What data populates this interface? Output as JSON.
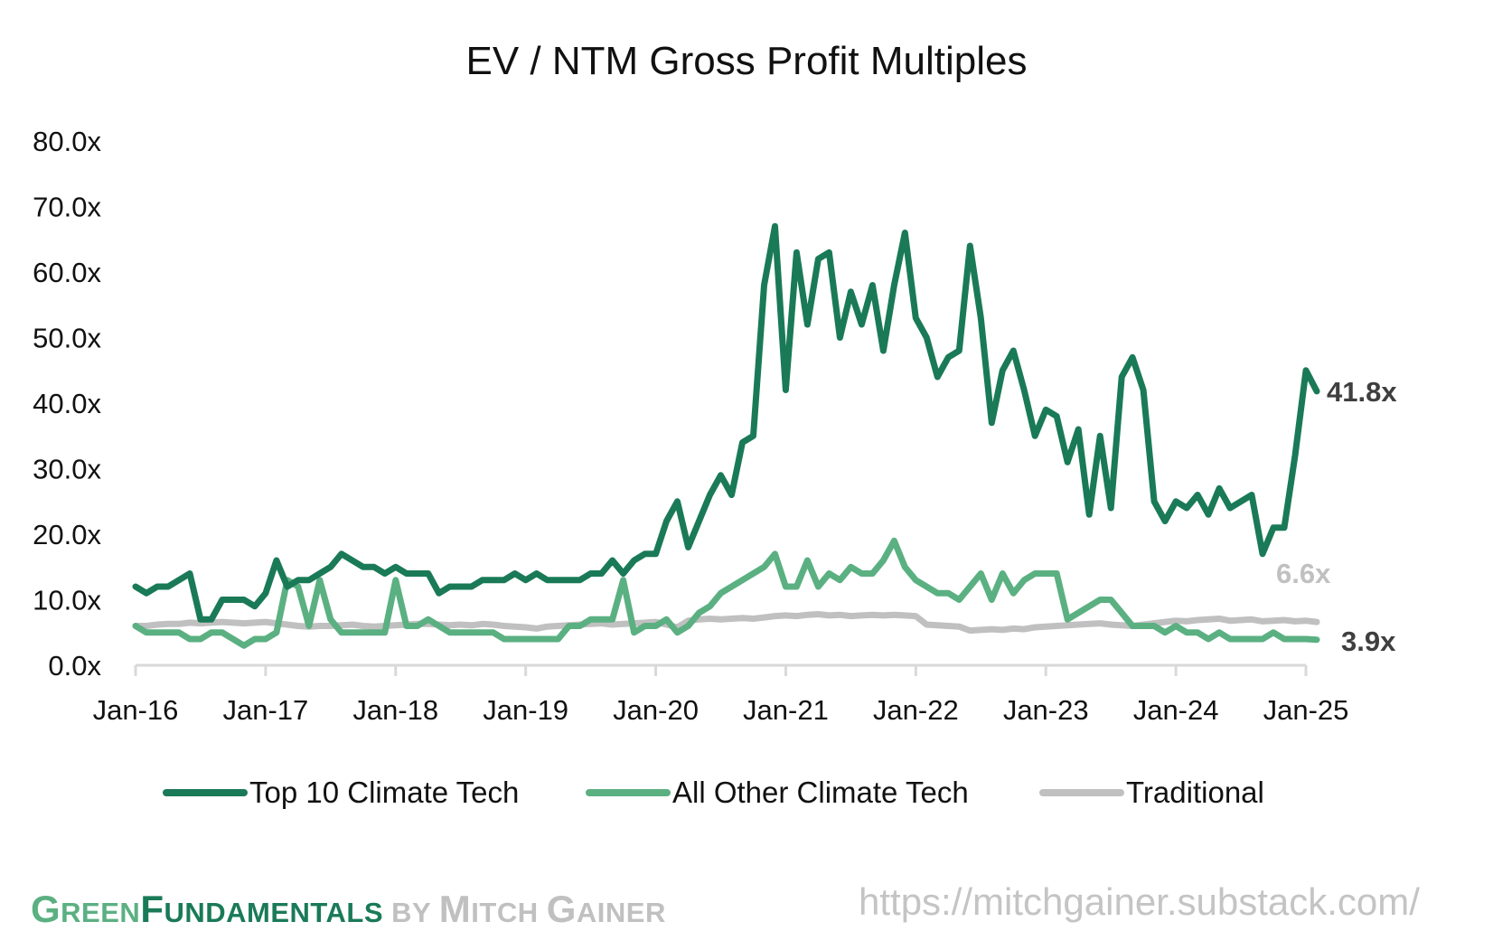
{
  "chart_data": {
    "type": "line",
    "title": "EV / NTM Gross Profit Multiples",
    "xlabel": "",
    "ylabel": "",
    "ylim": [
      0,
      80
    ],
    "y_ticks": [
      "0.0x",
      "10.0x",
      "20.0x",
      "30.0x",
      "40.0x",
      "50.0x",
      "60.0x",
      "70.0x",
      "80.0x"
    ],
    "x_ticks": [
      "Jan-16",
      "Jan-17",
      "Jan-18",
      "Jan-19",
      "Jan-20",
      "Jan-21",
      "Jan-22",
      "Jan-23",
      "Jan-24",
      "Jan-25"
    ],
    "x_start": "Jan-16",
    "x_frequency": "monthly",
    "grid": false,
    "legend_position": "bottom",
    "series": [
      {
        "name": "Top 10 Climate Tech",
        "color": "#1a7a58",
        "end_label": "41.8x",
        "values": [
          12,
          11,
          12,
          12,
          13,
          14,
          7,
          7,
          10,
          10,
          10,
          9,
          11,
          16,
          12,
          13,
          13,
          14,
          15,
          17,
          16,
          15,
          15,
          14,
          15,
          14,
          14,
          14,
          11,
          12,
          12,
          12,
          13,
          13,
          13,
          14,
          13,
          14,
          13,
          13,
          13,
          13,
          14,
          14,
          16,
          14,
          16,
          17,
          17,
          22,
          25,
          18,
          22,
          26,
          29,
          26,
          34,
          35,
          58,
          67,
          42,
          63,
          52,
          62,
          63,
          50,
          57,
          52,
          58,
          48,
          58,
          66,
          53,
          50,
          44,
          47,
          48,
          64,
          53,
          37,
          45,
          48,
          42,
          35,
          39,
          38,
          31,
          36,
          23,
          35,
          24,
          44,
          47,
          42,
          25,
          22,
          25,
          24,
          26,
          23,
          27,
          24,
          25,
          26,
          17,
          21,
          21,
          32,
          45,
          41.8
        ]
      },
      {
        "name": "All Other Climate Tech",
        "color": "#5bb082",
        "end_label": "3.9x",
        "values": [
          6,
          5,
          5,
          5,
          5,
          4,
          4,
          5,
          5,
          4,
          3,
          4,
          4,
          5,
          13,
          12,
          6,
          13,
          7,
          5,
          5,
          5,
          5,
          5,
          13,
          6,
          6,
          7,
          6,
          5,
          5,
          5,
          5,
          5,
          4,
          4,
          4,
          4,
          4,
          4,
          6,
          6,
          7,
          7,
          7,
          13,
          5,
          6,
          6,
          7,
          5,
          6,
          8,
          9,
          11,
          12,
          13,
          14,
          15,
          17,
          12,
          12,
          16,
          12,
          14,
          13,
          15,
          14,
          14,
          16,
          19,
          15,
          13,
          12,
          11,
          11,
          10,
          12,
          14,
          10,
          14,
          11,
          13,
          14,
          14,
          14,
          7,
          8,
          9,
          10,
          10,
          8,
          6,
          6,
          6,
          5,
          6,
          5,
          5,
          4,
          5,
          4,
          4,
          4,
          4,
          5,
          4,
          4,
          4,
          3.9
        ]
      },
      {
        "name": "Traditional",
        "color": "#c0c0c0",
        "end_label": "6.6x",
        "values": [
          6,
          6,
          6.2,
          6.3,
          6.3,
          6.5,
          6.4,
          6.5,
          6.6,
          6.5,
          6.4,
          6.5,
          6.6,
          6.4,
          6.2,
          6,
          5.9,
          6,
          6,
          6.1,
          6.2,
          6,
          5.9,
          6,
          6.1,
          6.2,
          6.3,
          6.3,
          6.2,
          6.1,
          6.2,
          6.1,
          6.3,
          6.2,
          6,
          5.9,
          5.8,
          5.6,
          5.9,
          6,
          6.1,
          6.2,
          6.3,
          6.4,
          6.2,
          6.3,
          6.4,
          6.5,
          6.6,
          6.2,
          5.8,
          6.8,
          7,
          7.1,
          7,
          7.1,
          7.2,
          7.1,
          7.3,
          7.5,
          7.6,
          7.5,
          7.7,
          7.8,
          7.6,
          7.7,
          7.5,
          7.6,
          7.7,
          7.6,
          7.7,
          7.6,
          7.5,
          6.2,
          6.1,
          6,
          5.9,
          5.3,
          5.4,
          5.5,
          5.4,
          5.6,
          5.5,
          5.8,
          5.9,
          6,
          6.1,
          6.2,
          6.3,
          6.4,
          6.2,
          6.1,
          6,
          6.2,
          6.4,
          6.6,
          6.8,
          6.7,
          6.9,
          7,
          7.1,
          6.8,
          6.9,
          7,
          6.7,
          6.8,
          6.9,
          6.7,
          6.8,
          6.6
        ]
      }
    ]
  },
  "footer": {
    "brand_green_1": "G",
    "brand_green_2": "REEN",
    "brand_dark_1": "F",
    "brand_dark_2": "UNDAMENTALS",
    "brand_by": " BY ",
    "brand_gray_1": "M",
    "brand_gray_2": "ITCH ",
    "brand_gray_3": "G",
    "brand_gray_4": "AINER",
    "url": "https://mitchgainer.substack.com/"
  }
}
